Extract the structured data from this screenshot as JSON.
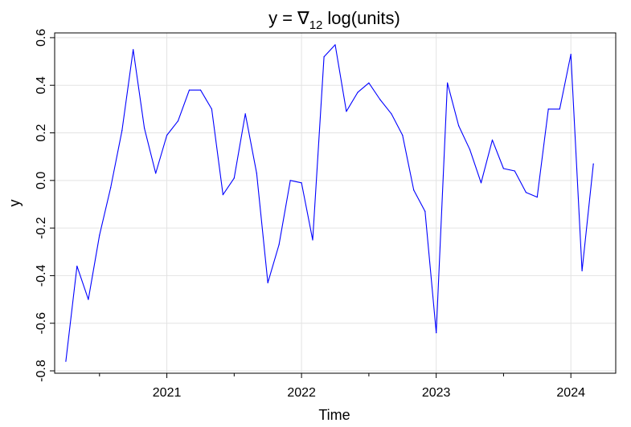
{
  "chart_data": {
    "type": "line",
    "title_parts": {
      "lhs": "y",
      "eq": "=",
      "op": "∇",
      "sub": "12",
      "rhs": "log(units)"
    },
    "xlabel": "Time",
    "ylabel": "y",
    "xlim": [
      2020.167,
      2024.333
    ],
    "ylim": [
      -0.81,
      0.62
    ],
    "x_ticks": [
      2021,
      2022,
      2023,
      2024
    ],
    "x_minor_ticks": [
      2020.5,
      2021.5,
      2022.5,
      2023.5
    ],
    "y_ticks": [
      -0.8,
      -0.6,
      -0.4,
      -0.2,
      0.0,
      0.2,
      0.4,
      0.6
    ],
    "y_tick_labels": [
      "-0.8",
      "-0.6",
      "-0.4",
      "-0.2",
      "0.0",
      "0.2",
      "0.4",
      "0.6"
    ],
    "x_tick_labels": [
      "2021",
      "2022",
      "2023",
      "2024"
    ],
    "grid": true,
    "line_color": "#0000ff",
    "series": [
      {
        "x": [
          2020.25,
          2020.333,
          2020.417,
          2020.5,
          2020.583,
          2020.667,
          2020.75,
          2020.833,
          2020.917,
          2021.0,
          2021.083,
          2021.167,
          2021.25,
          2021.333,
          2021.417,
          2021.5,
          2021.583,
          2021.667,
          2021.75,
          2021.833,
          2021.917,
          2022.0,
          2022.083,
          2022.167,
          2022.25,
          2022.333,
          2022.417,
          2022.5,
          2022.583,
          2022.667,
          2022.75,
          2022.833,
          2022.917,
          2023.0,
          2023.083,
          2023.167,
          2023.25,
          2023.333,
          2023.417,
          2023.5,
          2023.583,
          2023.667,
          2023.75,
          2023.833,
          2023.917,
          2024.0,
          2024.083,
          2024.167
        ],
        "values": [
          -0.76,
          -0.36,
          -0.5,
          -0.23,
          -0.03,
          0.21,
          0.55,
          0.22,
          0.03,
          0.19,
          0.25,
          0.38,
          0.38,
          0.3,
          -0.06,
          0.01,
          0.28,
          0.03,
          -0.43,
          -0.27,
          0.0,
          -0.01,
          -0.25,
          0.52,
          0.57,
          0.29,
          0.37,
          0.41,
          0.34,
          0.28,
          0.19,
          -0.04,
          -0.13,
          -0.64,
          0.41,
          0.23,
          0.13,
          -0.01,
          0.17,
          0.05,
          0.04,
          -0.05,
          -0.07,
          0.3,
          0.3,
          0.53,
          -0.38,
          0.07
        ]
      }
    ]
  }
}
